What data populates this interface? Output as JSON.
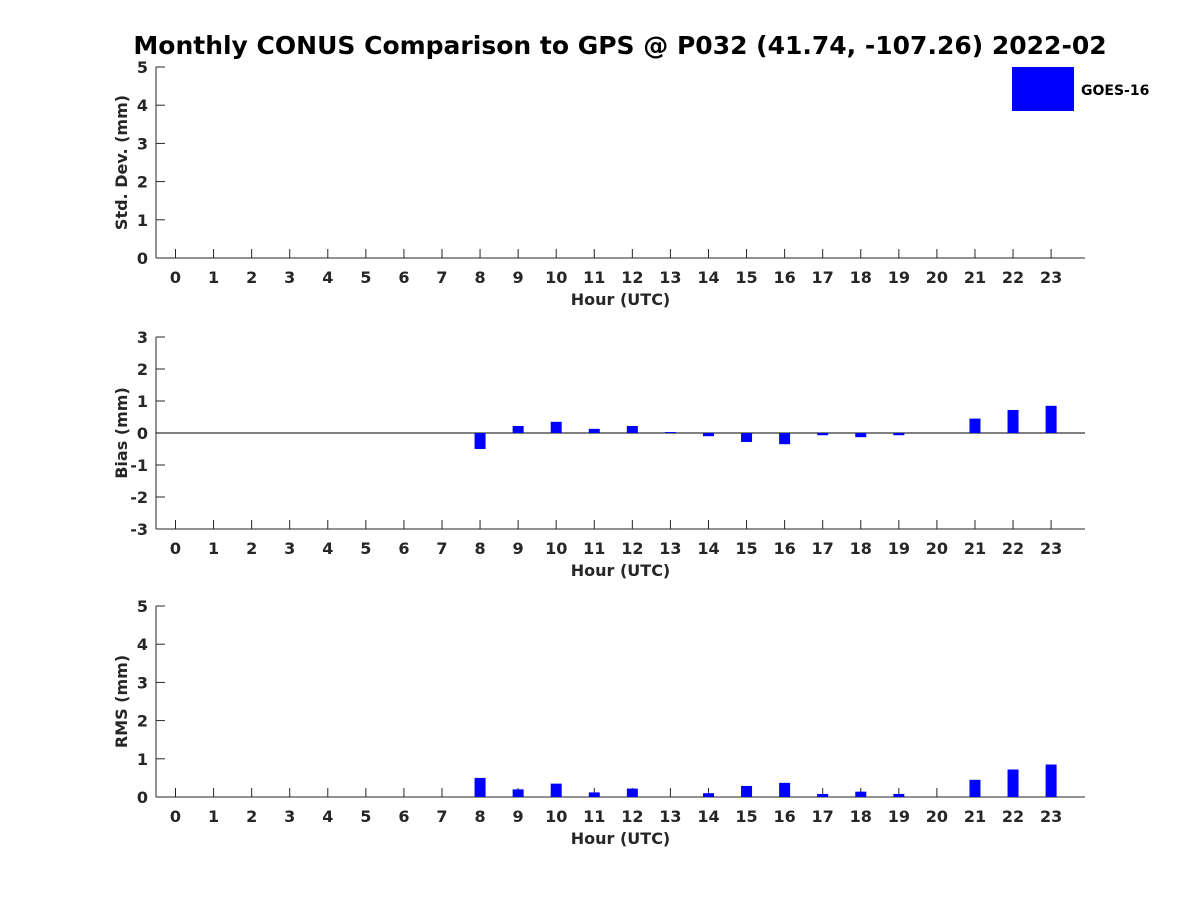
{
  "title": "Monthly CONUS Comparison to GPS @ P032 (41.74, -107.26) 2022-02",
  "legend": {
    "label": "GOES-16",
    "color": "#0000ff",
    "position": "top-right"
  },
  "chart_data": [
    {
      "type": "bar",
      "xlabel": "Hour (UTC)",
      "ylabel": "Std. Dev. (mm)",
      "categories": [
        "0",
        "1",
        "2",
        "3",
        "4",
        "5",
        "6",
        "7",
        "8",
        "9",
        "10",
        "11",
        "12",
        "13",
        "14",
        "15",
        "16",
        "17",
        "18",
        "19",
        "20",
        "21",
        "22",
        "23"
      ],
      "ylim": [
        0,
        5
      ],
      "yticks": [
        "0",
        "1",
        "2",
        "3",
        "4",
        "5"
      ],
      "series": [
        {
          "name": "GOES-16",
          "values": [
            null,
            null,
            null,
            null,
            null,
            null,
            null,
            null,
            null,
            null,
            null,
            null,
            null,
            null,
            null,
            null,
            null,
            null,
            null,
            null,
            null,
            null,
            null,
            null
          ]
        }
      ],
      "grid": false
    },
    {
      "type": "bar",
      "xlabel": "Hour (UTC)",
      "ylabel": "Bias (mm)",
      "categories": [
        "0",
        "1",
        "2",
        "3",
        "4",
        "5",
        "6",
        "7",
        "8",
        "9",
        "10",
        "11",
        "12",
        "13",
        "14",
        "15",
        "16",
        "17",
        "18",
        "19",
        "20",
        "21",
        "22",
        "23"
      ],
      "ylim": [
        -3,
        3
      ],
      "yticks": [
        "-3",
        "-2",
        "-1",
        "0",
        "1",
        "2",
        "3"
      ],
      "series": [
        {
          "name": "GOES-16",
          "values": [
            null,
            null,
            null,
            null,
            null,
            null,
            null,
            null,
            -0.5,
            0.22,
            0.35,
            0.13,
            0.22,
            0.03,
            -0.1,
            -0.28,
            -0.35,
            -0.07,
            -0.13,
            -0.07,
            null,
            0.45,
            0.72,
            0.85
          ]
        }
      ],
      "zero_line": true,
      "grid": false
    },
    {
      "type": "bar",
      "xlabel": "Hour (UTC)",
      "ylabel": "RMS (mm)",
      "categories": [
        "0",
        "1",
        "2",
        "3",
        "4",
        "5",
        "6",
        "7",
        "8",
        "9",
        "10",
        "11",
        "12",
        "13",
        "14",
        "15",
        "16",
        "17",
        "18",
        "19",
        "20",
        "21",
        "22",
        "23"
      ],
      "ylim": [
        0,
        5
      ],
      "yticks": [
        "0",
        "1",
        "2",
        "3",
        "4",
        "5"
      ],
      "series": [
        {
          "name": "GOES-16",
          "values": [
            null,
            null,
            null,
            null,
            null,
            null,
            null,
            null,
            0.5,
            0.2,
            0.35,
            0.12,
            0.22,
            null,
            0.1,
            0.29,
            0.37,
            0.08,
            0.14,
            0.08,
            null,
            0.45,
            0.72,
            0.85
          ]
        }
      ],
      "grid": false
    }
  ]
}
